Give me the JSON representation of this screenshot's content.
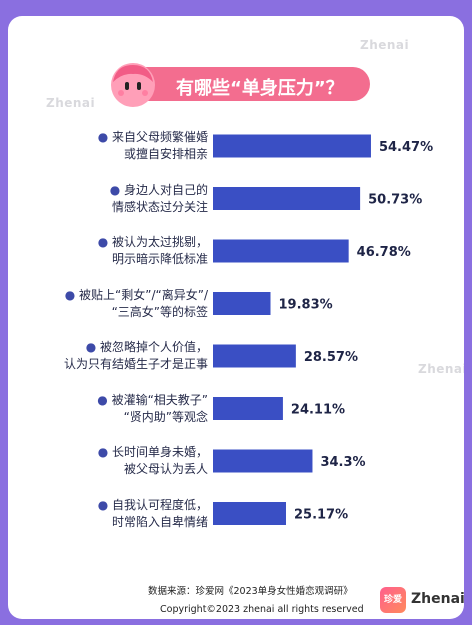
{
  "title": "有哪些“单身压力”？",
  "watermark": "Zhenai",
  "colors": {
    "bar": "#3a4fc4",
    "pill": "#f36d8f",
    "frame": "#8a6fe0",
    "bullet": "#3d4aa8"
  },
  "chart_data": {
    "type": "bar",
    "orientation": "horizontal",
    "unit": "%",
    "categories": [
      [
        "来自父母频繁催婚",
        "或擅自安排相亲"
      ],
      [
        "身边人对自己的",
        "情感状态过分关注"
      ],
      [
        "被认为太过挑剔，",
        "明示暗示降低标准"
      ],
      [
        "被贴上“剩女”/“离异女”/",
        "“三高女”等的标签"
      ],
      [
        "被忽略掉个人价值，",
        "认为只有结婚生子才是正事"
      ],
      [
        "被灌输“相夫教子”",
        "“贤内助”等观念"
      ],
      [
        "长时间单身未婚，",
        "被父母认为丢人"
      ],
      [
        "自我认可程度低，",
        "时常陷入自卑情绪"
      ]
    ],
    "values": [
      54.47,
      50.73,
      46.78,
      19.83,
      28.57,
      24.11,
      34.3,
      25.17
    ],
    "value_labels": [
      "54.47%",
      "50.73%",
      "46.78%",
      "19.83%",
      "28.57%",
      "24.11%",
      "34.3%",
      "25.17%"
    ],
    "xlim": [
      0,
      60
    ]
  },
  "footer": {
    "source": "数据来源：珍爱网《2023单身女性婚恋观调研》",
    "copyright": "Copyright©2023 zhenai all rights reserved",
    "logo_cn": "珍爱",
    "logo_en": "Zhenai"
  }
}
